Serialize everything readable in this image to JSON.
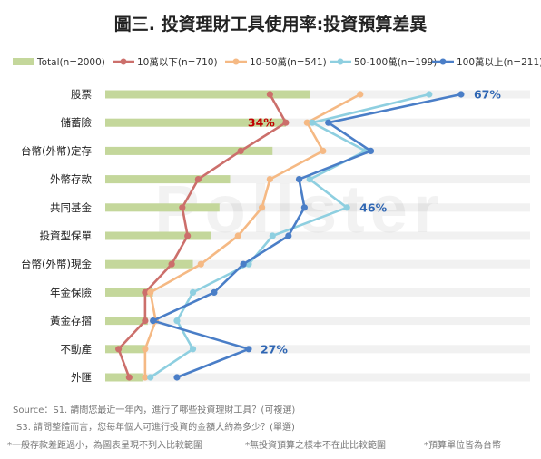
{
  "title": "圖三. 投資理財工具使用率:投資預算差異",
  "chart_data": {
    "type": "bar",
    "categories": [
      "股票",
      "儲蓄險",
      "台幣(外幣)定存",
      "外幣存款",
      "共同基金",
      "投資型保單",
      "台幣(外幣)現金",
      "年金保險",
      "黃金存摺",
      "不動產",
      "外匯"
    ],
    "xlim": [
      0,
      80
    ],
    "grid": false,
    "legend_position": "top",
    "series": [
      {
        "name": "Total(n=2000)",
        "type": "bar",
        "color": "#c4d79b",
        "values": [
          38.5,
          34,
          31.5,
          23.5,
          21.5,
          20,
          16.5,
          9,
          8,
          7.5,
          7
        ]
      },
      {
        "name": "10萬以下(n=710)",
        "type": "line",
        "color": "#cc6f6b",
        "values": [
          31,
          34,
          25.5,
          17.5,
          14.5,
          15.5,
          12.5,
          7.5,
          7.5,
          2.5,
          4.5
        ]
      },
      {
        "name": "10-50萬(n=541)",
        "type": "line",
        "color": "#f5b984",
        "values": [
          48,
          38,
          41,
          31,
          29.5,
          25,
          18,
          8.5,
          9.5,
          7.5,
          7.5
        ]
      },
      {
        "name": "50-100萬(n=199)",
        "type": "line",
        "color": "#8ecfe0",
        "values": [
          61,
          39,
          49,
          38.5,
          45.5,
          31.5,
          27,
          16.5,
          13.5,
          16.5,
          8.5
        ]
      },
      {
        "name": "100萬以上(n=211)",
        "type": "line",
        "color": "#4a7ec7",
        "values": [
          67,
          42,
          50,
          36.5,
          37.5,
          34.5,
          26,
          20.5,
          9,
          27,
          13.5
        ]
      }
    ],
    "annotations": [
      {
        "text": "67%",
        "category": "股票",
        "series": "100萬以上(n=211)",
        "color": "#2f66b3"
      },
      {
        "text": "34%",
        "category": "儲蓄險",
        "series": "10萬以下(n=710)",
        "color": "#c00000"
      },
      {
        "text": "46%",
        "category": "共同基金",
        "series": "50-100萬(n=199)",
        "color": "#2f66b3"
      },
      {
        "text": "27%",
        "category": "不動產",
        "series": "100萬以上(n=211)",
        "color": "#2f66b3"
      }
    ]
  },
  "watermark": "Pollster",
  "notes": {
    "source_1": "Source：S1. 請問您最近一年內，進行了哪些投資理財工具？(可複選)",
    "source_2": "S3. 請問整體而言，您每年個人可進行投資的金額大約為多少？(單選)",
    "footnote_1": "*一般存款差距過小，為圖表呈現不列入比較範圍",
    "footnote_2": "*無投資預算之樣本不在此比較範圍",
    "footnote_3": "*預算單位皆為台幣"
  }
}
